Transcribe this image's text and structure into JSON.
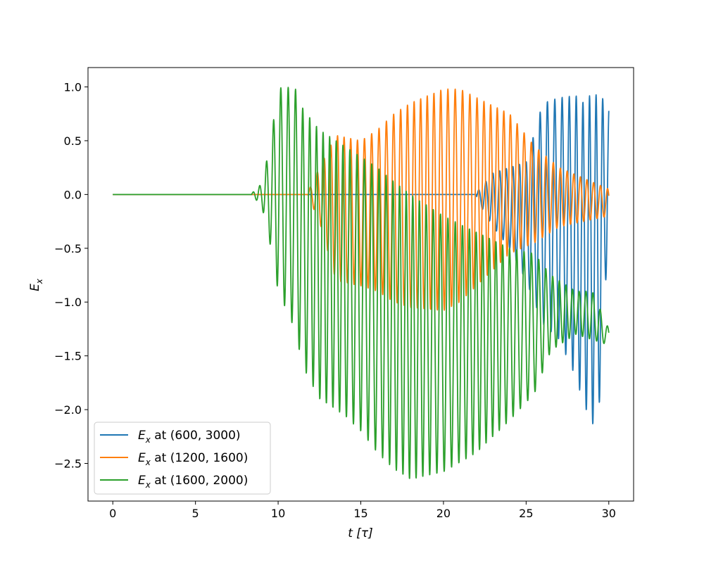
{
  "chart_data": {
    "type": "line",
    "title": "",
    "xlabel": "t [τ]",
    "ylabel": "E_x",
    "xlim": [
      -1.5,
      31.5
    ],
    "ylim": [
      -2.85,
      1.18
    ],
    "xticks": [
      0,
      5,
      10,
      15,
      20,
      25,
      30
    ],
    "yticks": [
      1.0,
      0.5,
      0.0,
      -0.5,
      -1.0,
      -1.5,
      -2.0,
      -2.5
    ],
    "xtick_labels": [
      "0",
      "5",
      "10",
      "15",
      "20",
      "25",
      "30"
    ],
    "ytick_labels": [
      "1.0",
      "0.5",
      "0.0",
      "−0.5",
      "−1.0",
      "−1.5",
      "−2.0",
      "−2.5"
    ],
    "grid": false,
    "legend_position": "lower-left",
    "series": [
      {
        "name": "E_x at (600, 3000)",
        "legend_prefix": "E",
        "legend_sub": "x",
        "legend_suffix": " at (600, 3000)",
        "color": "#1f77b4",
        "onset": 22.0,
        "period": 0.42,
        "profile": [
          [
            0,
            0,
            0
          ],
          [
            22.0,
            0.02,
            -0.05
          ],
          [
            23.0,
            0.2,
            -0.3
          ],
          [
            24.0,
            0.25,
            -0.5
          ],
          [
            25.0,
            0.3,
            -0.8
          ],
          [
            26.0,
            0.85,
            -1.2
          ],
          [
            27.0,
            0.9,
            -1.35
          ],
          [
            28.0,
            0.92,
            -1.7
          ],
          [
            28.5,
            0.85,
            -1.95
          ],
          [
            29.0,
            0.95,
            -2.15
          ],
          [
            29.5,
            0.9,
            -1.9
          ],
          [
            30.0,
            0.87,
            -0.2
          ]
        ]
      },
      {
        "name": "E_x at (1200, 1600)",
        "legend_prefix": "E",
        "legend_sub": "x",
        "legend_suffix": " at (1200, 1600)",
        "color": "#ff7f0e",
        "onset": 11.8,
        "period": 0.42,
        "profile": [
          [
            0,
            0,
            0
          ],
          [
            11.8,
            0.02,
            -0.02
          ],
          [
            12.5,
            0.25,
            -0.25
          ],
          [
            13.5,
            0.55,
            -0.8
          ],
          [
            15.0,
            0.5,
            -0.85
          ],
          [
            16.0,
            0.6,
            -0.9
          ],
          [
            17.0,
            0.75,
            -1.0
          ],
          [
            18.0,
            0.85,
            -1.05
          ],
          [
            20.0,
            0.98,
            -1.08
          ],
          [
            21.0,
            0.98,
            -1.0
          ],
          [
            22.0,
            0.9,
            -0.85
          ],
          [
            24.0,
            0.75,
            -0.55
          ],
          [
            25.5,
            0.45,
            -0.45
          ],
          [
            27.0,
            0.25,
            -0.3
          ],
          [
            30.0,
            0.05,
            -0.2
          ]
        ]
      },
      {
        "name": "E_x at (1600, 2000)",
        "legend_prefix": "E",
        "legend_sub": "x",
        "legend_suffix": " at (1600, 2000)",
        "color": "#2ca02c",
        "onset": 8.4,
        "period": 0.42,
        "profile": [
          [
            0,
            0,
            0
          ],
          [
            8.4,
            0.01,
            -0.01
          ],
          [
            9.0,
            0.1,
            -0.1
          ],
          [
            9.5,
            0.45,
            -0.45
          ],
          [
            10.0,
            0.99,
            -0.9
          ],
          [
            11.0,
            1.0,
            -1.25
          ],
          [
            11.5,
            0.8,
            -1.6
          ],
          [
            12.5,
            0.6,
            -1.9
          ],
          [
            14.0,
            0.45,
            -2.05
          ],
          [
            15.0,
            0.35,
            -2.2
          ],
          [
            16.0,
            0.25,
            -2.4
          ],
          [
            17.0,
            0.12,
            -2.55
          ],
          [
            18.0,
            0.0,
            -2.65
          ],
          [
            20.0,
            -0.2,
            -2.58
          ],
          [
            22.0,
            -0.35,
            -2.4
          ],
          [
            24.0,
            -0.5,
            -2.1
          ],
          [
            25.5,
            -0.55,
            -1.85
          ],
          [
            26.5,
            -0.75,
            -1.45
          ],
          [
            28.0,
            -0.9,
            -1.3
          ],
          [
            29.0,
            -0.9,
            -1.35
          ],
          [
            30.0,
            -1.25,
            -1.4
          ]
        ]
      }
    ]
  }
}
